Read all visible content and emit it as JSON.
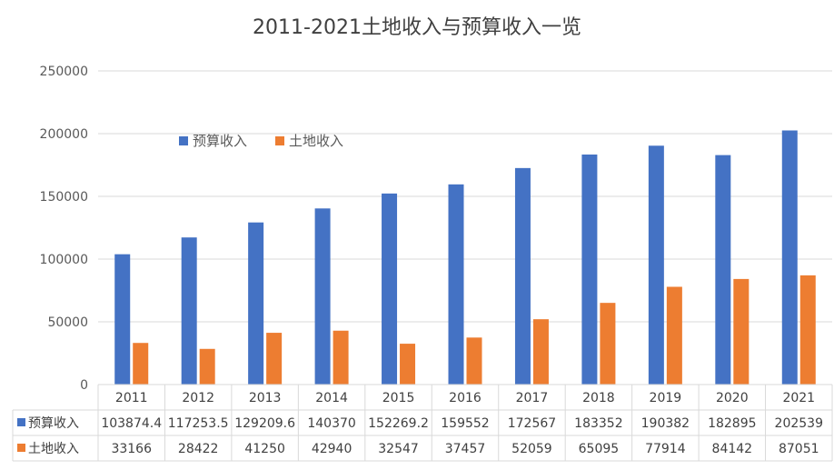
{
  "chart_data": {
    "type": "bar",
    "title": "2011-2021土地收入与预算收入一览",
    "categories": [
      "2011",
      "2012",
      "2013",
      "2014",
      "2015",
      "2016",
      "2017",
      "2018",
      "2019",
      "2020",
      "2021"
    ],
    "series": [
      {
        "name": "预算收入",
        "color": "#4472C4",
        "values": [
          103874.4,
          117253.5,
          129209.6,
          140370,
          152269.2,
          159552,
          172567,
          183352,
          190382,
          182895,
          202539
        ],
        "labels": [
          "103874.4",
          "117253.5",
          "129209.6",
          "140370",
          "152269.2",
          "159552",
          "172567",
          "183352",
          "190382",
          "182895",
          "202539"
        ]
      },
      {
        "name": "土地收入",
        "color": "#ED7D31",
        "values": [
          33166,
          28422,
          41250,
          42940,
          32547,
          37457,
          52059,
          65095,
          77914,
          84142,
          87051
        ],
        "labels": [
          "33166",
          "28422",
          "41250",
          "42940",
          "32547",
          "37457",
          "52059",
          "65095",
          "77914",
          "84142",
          "87051"
        ]
      }
    ],
    "ylim": [
      0,
      250000
    ],
    "yticks": [
      "0",
      "50000",
      "100000",
      "150000",
      "200000",
      "250000"
    ],
    "grid": true,
    "legend_position": "top-left",
    "data_table": true
  }
}
